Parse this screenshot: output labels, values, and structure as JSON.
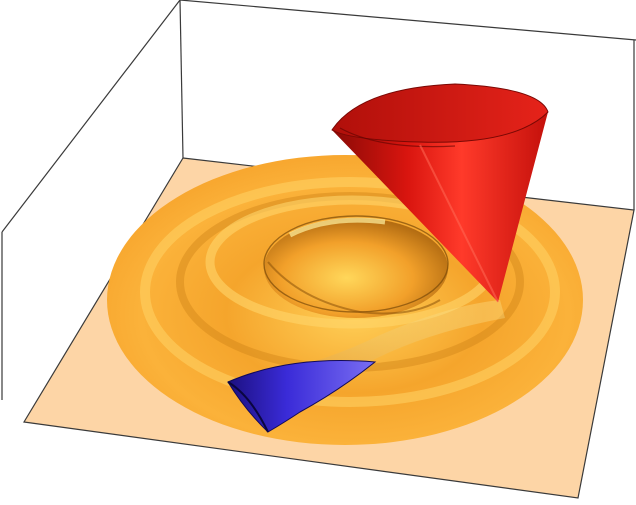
{
  "scene": {
    "type": "3d-surface-render",
    "colors": {
      "background": "#ffffff",
      "frame": "#3a3a3a",
      "floor": "#fdd5a6",
      "disk": "#f6a52a",
      "ripple": "#ffc83d",
      "cone": "#e0140f",
      "blue_surface": "#3a2bd8"
    }
  }
}
